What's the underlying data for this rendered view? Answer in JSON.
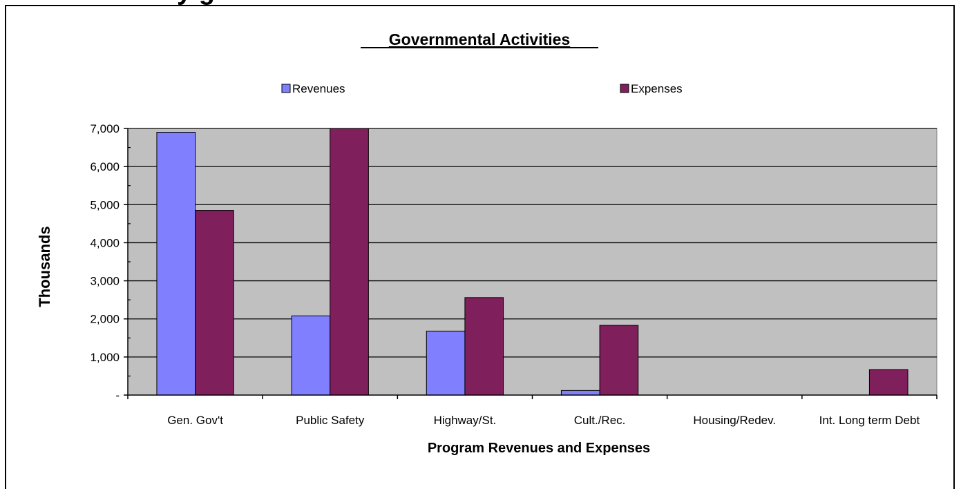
{
  "page_heading_fragment": "y  g",
  "colors": {
    "revenues": "#8080FF",
    "expenses": "#7F1F5C",
    "plot_bg": "#C0C0C0"
  },
  "chart_data": {
    "type": "bar",
    "title": "Governmental Activities",
    "xlabel": "Program Revenues and Expenses",
    "ylabel": "Thousands",
    "ylim": [
      0,
      7000
    ],
    "yticks": [
      0,
      1000,
      2000,
      3000,
      4000,
      5000,
      6000,
      7000
    ],
    "ytick_labels": [
      "-",
      "1,000",
      "2,000",
      "3,000",
      "4,000",
      "5,000",
      "6,000",
      "7,000"
    ],
    "categories": [
      "Gen. Gov't",
      "Public Safety",
      "Highway/St.",
      "Cult./Rec.",
      "Housing/Redev.",
      "Int. Long term Debt"
    ],
    "series": [
      {
        "name": "Revenues",
        "values": [
          6900,
          2080,
          1680,
          120,
          0,
          0
        ]
      },
      {
        "name": "Expenses",
        "values": [
          4850,
          7000,
          2560,
          1830,
          0,
          670
        ]
      }
    ],
    "grid": true,
    "legend_position": "top"
  }
}
